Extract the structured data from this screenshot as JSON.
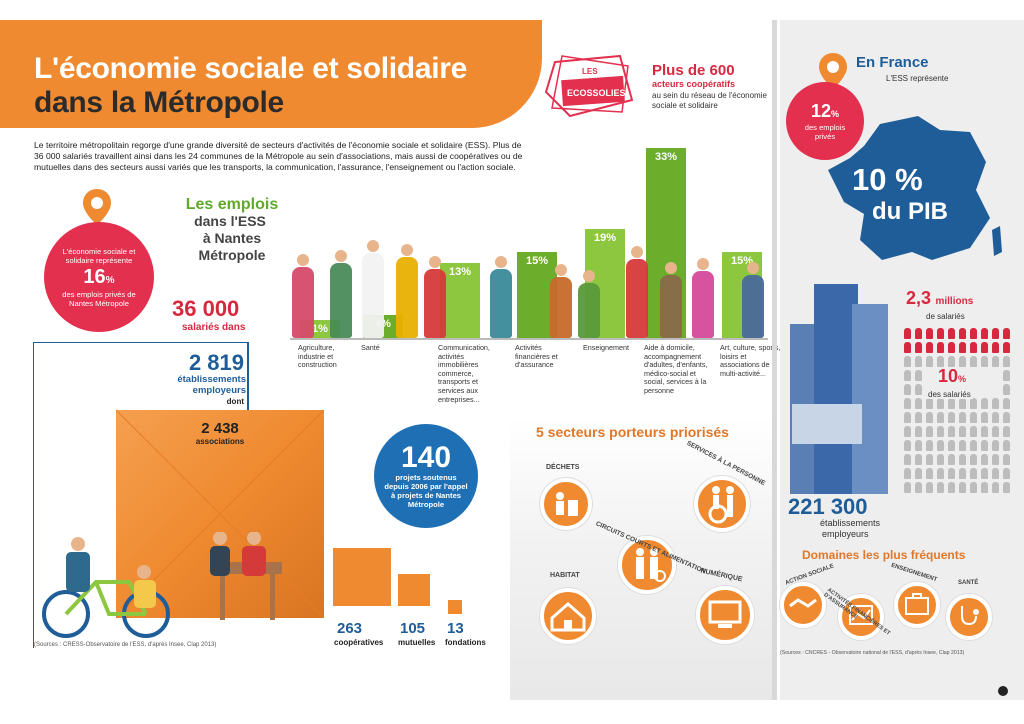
{
  "header": {
    "title_line1": "L'économie sociale et solidaire",
    "title_line2": "dans la Métropole",
    "intro": "Le territoire métropolitain regorge d'une grande diversité de secteurs d'activités de l'économie sociale et solidaire (ESS). Plus de 36 000 salariés travaillent ainsi dans les 24 communes de la Métropole au sein d'associations, mais aussi de coopératives ou de mutuelles dans des secteurs aussi variés que les transports, la communication, l'assurance, l'enseignement ou l'action sociale."
  },
  "ecossolies": {
    "logo_text_1": "LES",
    "logo_text_2": "ECOSSOLIES",
    "headline": "Plus de 600",
    "sub": "acteurs coopératifs",
    "desc": "au sein du réseau de l'économie sociale et solidaire"
  },
  "metro_share": {
    "line1": "L'économie sociale et solidaire représente",
    "value": "16",
    "unit": "%",
    "line2": "des emplois privés de Nantes Métropole"
  },
  "emplois": {
    "title1": "Les emplois",
    "title2": "dans l'ESS",
    "title3": "à Nantes",
    "title4": "Métropole",
    "count": "36 000",
    "count_label": "salariés dans"
  },
  "sectors": [
    {
      "pct": "1%",
      "value": 1,
      "label": "Agriculture, industrie et construction"
    },
    {
      "pct": "4%",
      "value": 4,
      "label": "Santé"
    },
    {
      "pct": "13%",
      "value": 13,
      "label": "Communication, activités immobilières commerce, transports et services aux entreprises..."
    },
    {
      "pct": "15%",
      "value": 15,
      "label": "Activités financières et d'assurance"
    },
    {
      "pct": "19%",
      "value": 19,
      "label": "Enseignement"
    },
    {
      "pct": "33%",
      "value": 33,
      "label": "Aide à domicile, accompagnement d'adultes, d'enfants, médico-social et social, services à la personne"
    },
    {
      "pct": "15%",
      "value": 15,
      "label": "Art, culture, sports, loisirs et associations de multi-activité..."
    }
  ],
  "etablissements": {
    "count": "2 819",
    "label": "établissements employeurs",
    "dont": "dont",
    "assoc_count": "2 438",
    "assoc_label": "associations",
    "coop_count": "263",
    "coop_label": "coopératives",
    "mut_count": "105",
    "mut_label": "mutuelles",
    "fond_count": "13",
    "fond_label": "fondations",
    "source": "(Sources : CRESS-Observatoire de l'ESS, d'après Insee, Clap 2013)"
  },
  "projets": {
    "count": "140",
    "label": "projets soutenus depuis 2006 par l'appel à projets de Nantes Métropole"
  },
  "secteurs_porteurs": {
    "title": "5 secteurs porteurs priorisés",
    "items": [
      "DÉCHETS",
      "SERVICES À LA PERSONNE",
      "CIRCUITS COURTS ET ALIMENTATION",
      "HABITAT",
      "NUMÉRIQUE"
    ]
  },
  "france": {
    "title": "En France",
    "sub": "L'ESS représente",
    "pct_value": "12",
    "pct_unit": "%",
    "pct_label": "des emplois privés",
    "pib_value": "10 %",
    "pib_label": "du PIB",
    "salaries_value": "2,3",
    "salaries_unit": "millions",
    "salaries_label": "de salariés",
    "share_value": "10",
    "share_unit": "%",
    "share_label": "des salariés",
    "etab_count": "221 300",
    "etab_label1": "établissements",
    "etab_label2": "employeurs",
    "domaines_title": "Domaines les plus fréquents",
    "domaines": [
      "ACTION SOCIALE",
      "ACTIVITÉS FINANCIÈRES ET D'ASSURANCE",
      "ENSEIGNEMENT",
      "SANTÉ"
    ],
    "source": "(Sources : CNCRES - Observatoire national de l'ESS, d'après Insee, Clap 2013)"
  },
  "colors": {
    "orange": "#ef8a30",
    "red": "#e3304f",
    "green": "#8dc63f",
    "blue": "#1f5d99"
  }
}
